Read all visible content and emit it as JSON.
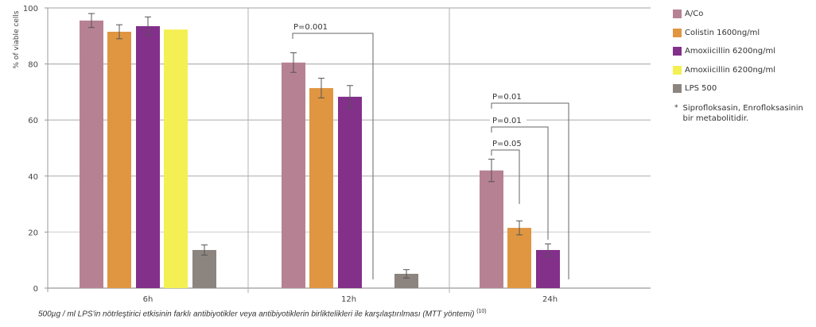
{
  "chart_data": {
    "type": "bar",
    "title": "",
    "xlabel": "",
    "ylabel": "% of viable cells",
    "ylim": [
      0,
      100
    ],
    "yticks": [
      0,
      20,
      40,
      60,
      80,
      100
    ],
    "grid": true,
    "legend_position": "right",
    "categories": [
      "6h",
      "12h",
      "24h"
    ],
    "series": [
      {
        "name": "A/Co",
        "color": "#b78194",
        "values": [
          95.5,
          80.5,
          42
        ],
        "errors": [
          2.5,
          3.5,
          4
        ]
      },
      {
        "name": "Colistin 1600ng/ml",
        "color": "#e09641",
        "values": [
          91.5,
          71.4,
          21.5
        ],
        "errors": [
          2.5,
          3.5,
          2.5
        ]
      },
      {
        "name": "Amoxiicillin 6200ng/ml",
        "color": "#82308a",
        "values": [
          93.5,
          68.3,
          13.6
        ],
        "errors": [
          3.3,
          4,
          2.2
        ]
      },
      {
        "name": "Amoxiicillin 6200ng/ml",
        "color": "#f4ef52",
        "values": [
          92.3,
          null,
          null
        ],
        "errors": [
          0,
          null,
          null
        ]
      },
      {
        "name": "LPS 500",
        "color": "#8c847e",
        "values": [
          13.6,
          5.1,
          null
        ],
        "errors": [
          1.8,
          1.5,
          null
        ]
      }
    ],
    "annotations": [
      {
        "text": "P=0.001",
        "group": "12h",
        "compare": [
          "A/Co",
          "LPS 500"
        ]
      },
      {
        "text": "P=0.05",
        "group": "24h",
        "compare": [
          "A/Co",
          "Colistin 1600ng/ml"
        ]
      },
      {
        "text": "P=0.01",
        "group": "24h",
        "compare": [
          "A/Co",
          "Amoxiicillin 6200ng/ml"
        ]
      },
      {
        "text": "P=0.01",
        "group": "24h",
        "compare": [
          "A/Co",
          "LPS 500"
        ]
      }
    ]
  },
  "legend": {
    "items": [
      {
        "label": "A/Co",
        "color": "#b78194"
      },
      {
        "label": "Colistin 1600ng/ml",
        "color": "#e09641"
      },
      {
        "label": "Amoxiicillin 6200ng/ml",
        "color": "#82308a"
      },
      {
        "label": "Amoxiicillin 6200ng/ml",
        "color": "#f4ef52"
      },
      {
        "label": "LPS 500",
        "color": "#8c847e"
      }
    ],
    "note_symbol": "*",
    "note": "Siprofloksasin,  Enrofloksasinin bir metabolitidir."
  },
  "caption": {
    "text": "500µg / ml LPS'in nötrleştirici etkisinin farklı antibiyotikler veya antibiyotiklerin  birliktelikleri  ile karşılaştırılması (MTT yöntemi)",
    "ref": "(10)"
  }
}
